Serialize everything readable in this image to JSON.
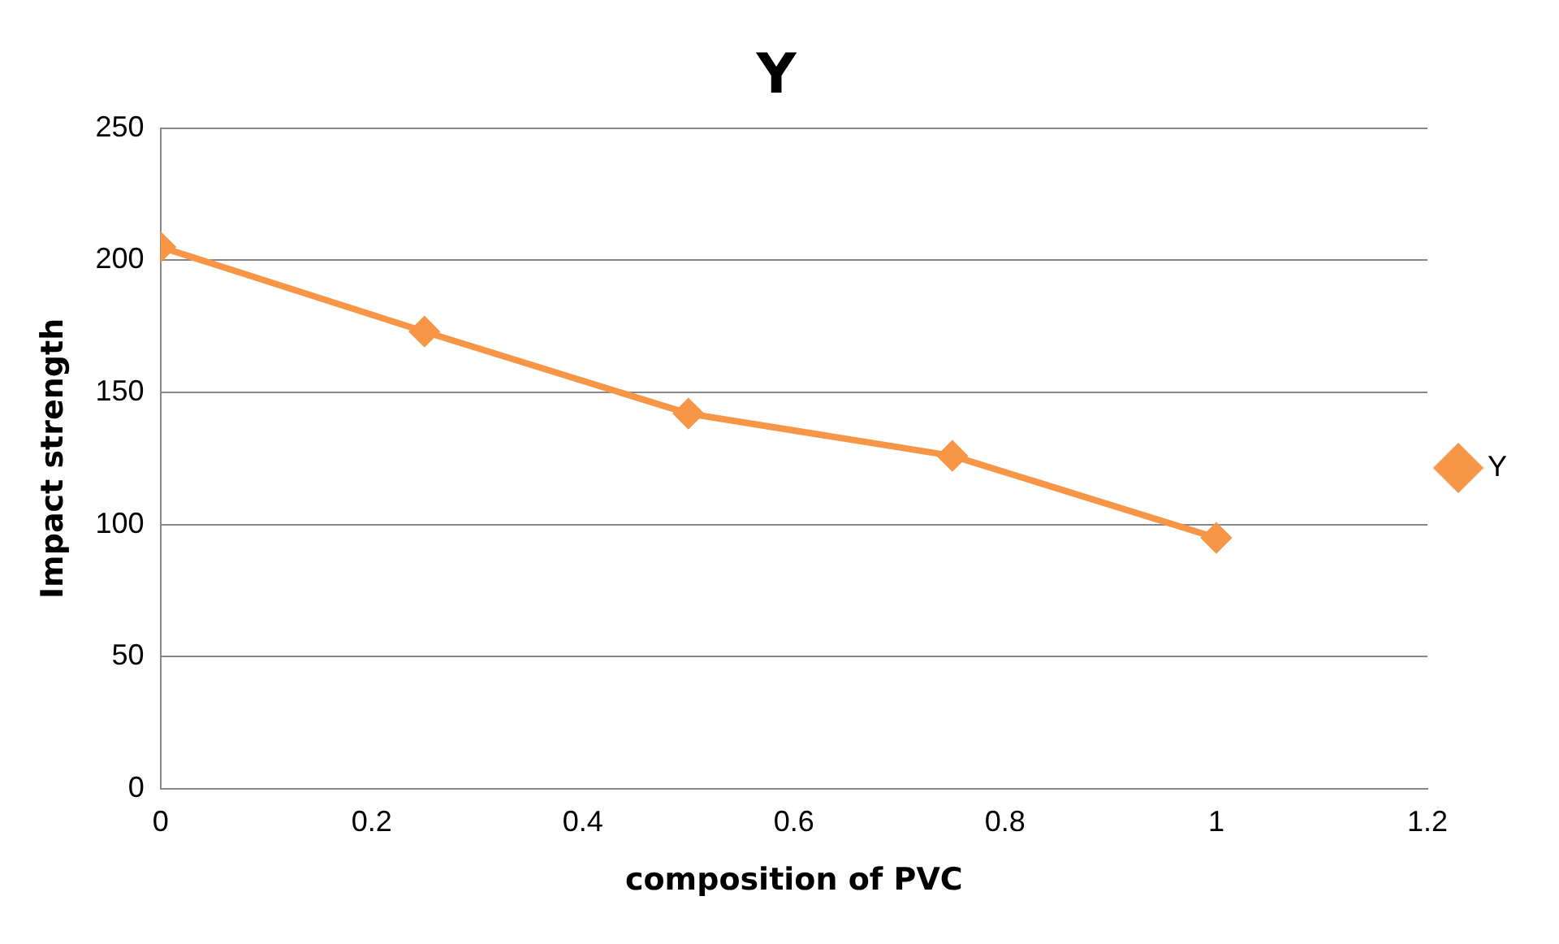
{
  "chart_data": {
    "type": "line",
    "title": "Y",
    "xlabel": "composition of PVC",
    "ylabel": "Impact strength",
    "x": [
      0,
      0.25,
      0.5,
      0.75,
      1
    ],
    "series": [
      {
        "name": "Y",
        "color": "#f79646",
        "values": [
          205,
          173,
          142,
          126,
          95
        ]
      }
    ],
    "xlim": [
      0,
      1.2
    ],
    "xticks": [
      0,
      0.2,
      0.4,
      0.6,
      0.8,
      1,
      1.2
    ],
    "ylim": [
      0,
      250
    ],
    "yticks": [
      0,
      50,
      100,
      150,
      200,
      250
    ],
    "grid": "y",
    "legend": "right",
    "marker": "diamond",
    "line_style": "solid"
  }
}
